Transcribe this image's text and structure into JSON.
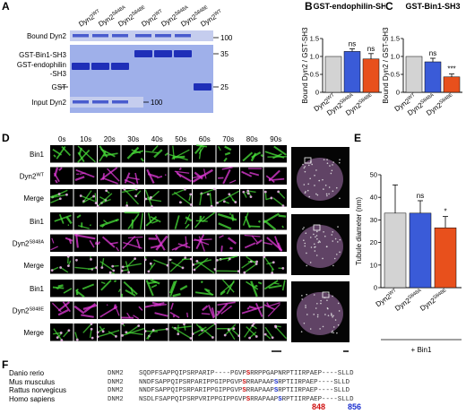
{
  "panel_labels": {
    "a": "A",
    "b": "B",
    "c": "C",
    "d": "D",
    "e": "E",
    "f": "F"
  },
  "panelA": {
    "lanes": [
      "Dyn2WT",
      "Dyn2S848A",
      "Dyn2S848E",
      "Dyn2WT",
      "Dyn2S848A",
      "Dyn2S848E",
      "Dyn2WT"
    ],
    "lane_base": "Dyn2",
    "lane_sups": [
      "WT",
      "S848A",
      "S848E",
      "WT",
      "S848A",
      "S848E",
      "WT"
    ],
    "rows": {
      "bound": "Bound Dyn2",
      "gst_bin1": "GST-Bin1-SH3",
      "gst_endo_1": "GST-endophilin",
      "gst_endo_2": "-SH3",
      "gst": "GST",
      "input": "Input Dyn2"
    },
    "markers": {
      "m100": "100",
      "m35": "35",
      "m25": "25",
      "m100b": "100"
    }
  },
  "chart_data": [
    {
      "type": "bar",
      "title": "GST-endophilin-SH3",
      "ylabel": "Bound Dyn2 / GST-SH3",
      "ylim": [
        0,
        1.5
      ],
      "yticks": [
        "0",
        "0.5",
        "1.0",
        "1.5"
      ],
      "categories": [
        "WT",
        "S848A",
        "S848E"
      ],
      "values": [
        1.0,
        1.14,
        0.93
      ],
      "errors": [
        0,
        0.07,
        0.15
      ],
      "significance": [
        "",
        "ns",
        "ns"
      ],
      "colors": [
        "#d3d3d3",
        "#3a5bd8",
        "#e8501c"
      ]
    },
    {
      "type": "bar",
      "title": "GST-Bin1-SH3",
      "ylabel": "Bound Dyn2 / GST-SH3",
      "ylim": [
        0,
        1.5
      ],
      "yticks": [
        "0",
        "0.5",
        "1.0",
        "1.5"
      ],
      "categories": [
        "WT",
        "S848A",
        "S848E"
      ],
      "values": [
        1.0,
        0.85,
        0.43
      ],
      "errors": [
        0,
        0.1,
        0.08
      ],
      "significance": [
        "",
        "ns",
        "***"
      ],
      "colors": [
        "#d3d3d3",
        "#3a5bd8",
        "#e8501c"
      ]
    },
    {
      "type": "bar",
      "title": "",
      "ylabel": "Tubule diameter (nm)",
      "xlabel": "+ Bin1",
      "ylim": [
        0,
        50
      ],
      "yticks": [
        "0",
        "10",
        "20",
        "30",
        "40",
        "50"
      ],
      "categories": [
        "WT",
        "S848A",
        "S848E"
      ],
      "values": [
        33,
        33,
        26.5
      ],
      "errors": [
        12.5,
        5.5,
        5
      ],
      "significance": [
        "",
        "ns",
        "*"
      ],
      "colors": [
        "#d3d3d3",
        "#3a5bd8",
        "#e8501c"
      ]
    }
  ],
  "panelD": {
    "times": [
      "0s",
      "10s",
      "20s",
      "30s",
      "40s",
      "50s",
      "60s",
      "70s",
      "80s",
      "90s"
    ],
    "groups": [
      {
        "rows": [
          "Bin1",
          "Dyn2",
          "Merge"
        ],
        "dyn_sup": "WT"
      },
      {
        "rows": [
          "Bin1",
          "Dyn2",
          "Merge"
        ],
        "dyn_sup": "S848A"
      },
      {
        "rows": [
          "Bin1",
          "Dyn2",
          "Merge"
        ],
        "dyn_sup": "S848E"
      }
    ]
  },
  "panelF": {
    "gene": "DNM2",
    "rows": [
      {
        "species": "Danio rerio",
        "pre": "SQDPFSAPPQIPSRPARIP----PGVP",
        "r1": "S",
        "mid": "RRPPGAPNRPTIIRPAEP----SLLD",
        "r2": "",
        "post": ""
      },
      {
        "species": "Mus musculus",
        "pre": "NNDFSAPPQIPSRPARIPPGIPPGVP",
        "r1": "S",
        "mid": "RRAPAAP",
        "r2": "S",
        "post": "RPTIIRPAEP----SLLD"
      },
      {
        "species": "Rattus norvegicus",
        "pre": "NNDFSAPPQIPSRPARIPPGIPPGVP",
        "r1": "S",
        "mid": "RRAPAAP",
        "r2": "S",
        "post": "RPTIIRPAEP----SLLD"
      },
      {
        "species": "Homo sapiens",
        "pre": "NSDLFSAPPQIPSRPVRIPPGIPPGVP",
        "r1": "S",
        "mid": "RRAPAAP",
        "r2": "S",
        "post": "RPTIIRPAEP----SLLD"
      }
    ],
    "positions": {
      "p848": "848",
      "p856": "856"
    },
    "colors": {
      "s848": "#d01010",
      "s856": "#1a2fcf"
    }
  }
}
